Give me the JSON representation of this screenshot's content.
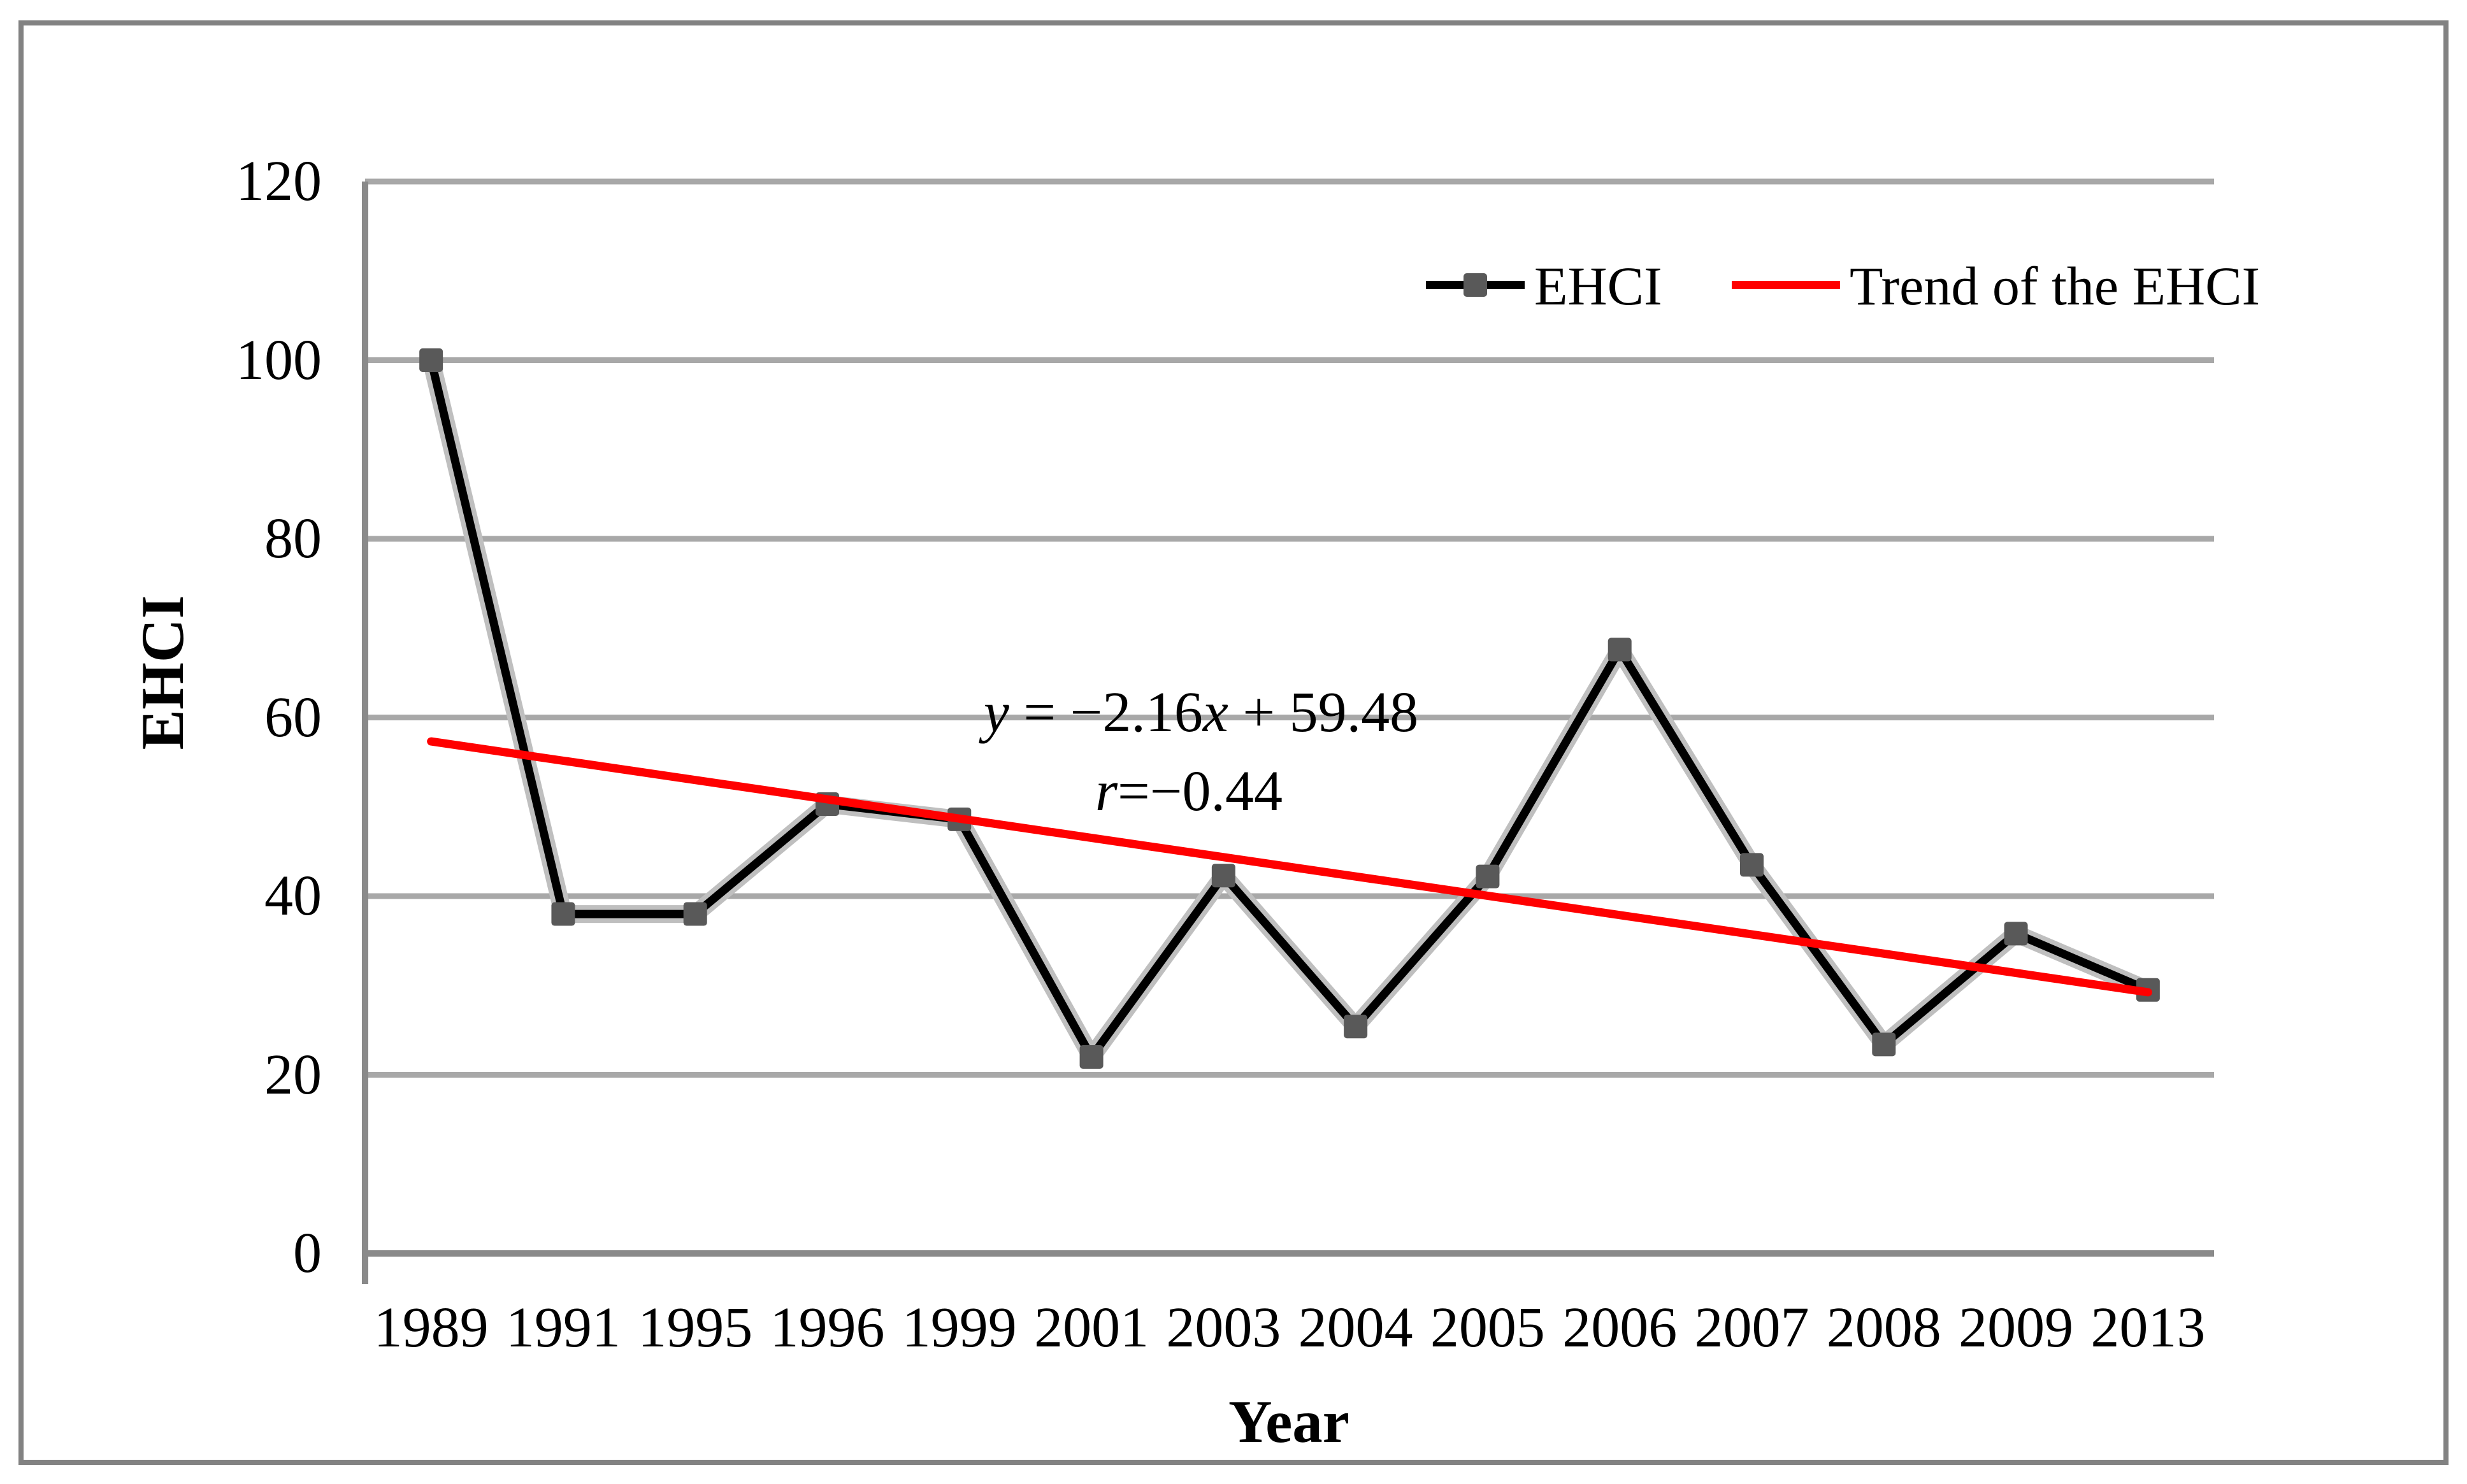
{
  "figure": {
    "background": "#ffffff",
    "border_color": "#828282"
  },
  "chart_data": {
    "type": "line",
    "title": "",
    "xlabel": "Year",
    "ylabel": "EHCI",
    "categories": [
      "1989",
      "1991",
      "1995",
      "1996",
      "1999",
      "2001",
      "2003",
      "2004",
      "2005",
      "2006",
      "2007",
      "2008",
      "2009",
      "2013"
    ],
    "series": [
      {
        "name": "EHCI",
        "style": "black line with dark gray square markers and light gray outline",
        "line_color": "#000000",
        "line_outline_color": "#bfbfbf",
        "marker_color": "#595959",
        "values": [
          100,
          38,
          38,
          50.3,
          48.6,
          22,
          42.3,
          25.4,
          42.2,
          67.6,
          43.5,
          23.4,
          35.8,
          29.5
        ]
      },
      {
        "name": "Trend of the EHCI",
        "style": "straight red trendline",
        "line_color": "#ff0000",
        "slope": -2.16,
        "intercept": 59.48,
        "x_index_range": [
          1,
          14
        ],
        "endpoint_values": [
          57.32,
          29.24
        ]
      }
    ],
    "y_ticks": [
      "0",
      "20",
      "40",
      "60",
      "80",
      "100",
      "120"
    ],
    "ylim": [
      0,
      120
    ],
    "grid": "horizontal gridlines every 20 units",
    "gridline_color": "#a8a8a8",
    "axis_color": "#8a8a8a",
    "legend_position": "inside top-right, horizontal row",
    "annotation": {
      "line1": "y = −2.16x + 59.48",
      "line2": "r=−0.44",
      "line1_segments": [
        {
          "text": "y",
          "italic": true
        },
        {
          "text": " = −2.16",
          "italic": false
        },
        {
          "text": "x",
          "italic": true
        },
        {
          "text": " + 59.48",
          "italic": false
        }
      ],
      "line2_segments": [
        {
          "text": "r",
          "italic": true
        },
        {
          "text": "=−0.44",
          "italic": false
        }
      ]
    }
  },
  "legend": {
    "items": [
      {
        "label": "EHCI",
        "swatch": "black line with gray square marker"
      },
      {
        "label": "Trend of the EHCI",
        "swatch": "red line"
      }
    ]
  }
}
